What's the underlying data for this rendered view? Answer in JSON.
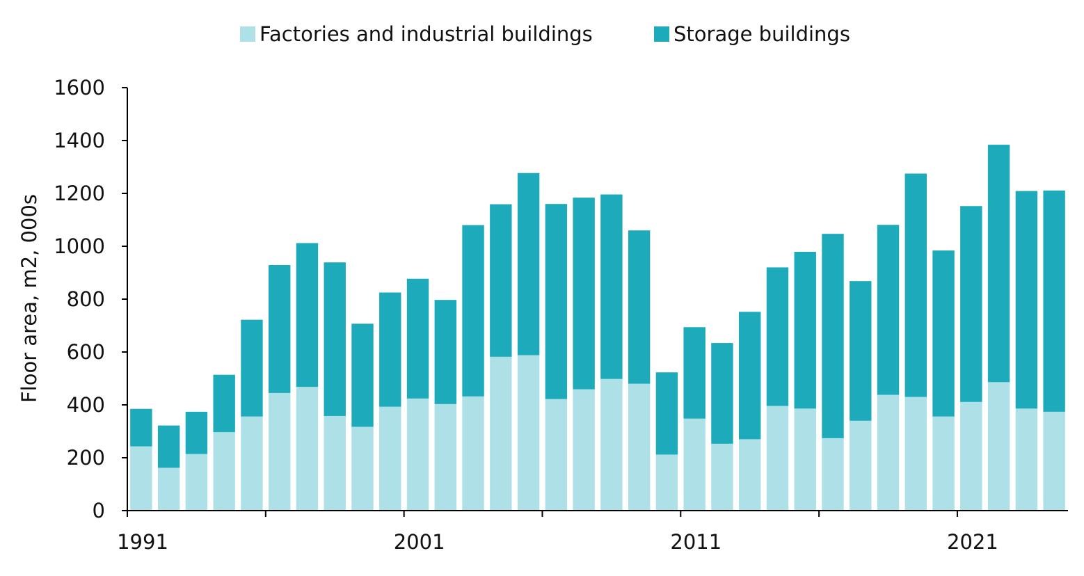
{
  "chart_data": {
    "type": "bar",
    "stacked": true,
    "title": "",
    "xlabel": "",
    "ylabel": "Floor area, m2, 000s",
    "ylim": [
      0,
      1600
    ],
    "yticks": [
      0,
      200,
      400,
      600,
      800,
      1000,
      1200,
      1400,
      1600
    ],
    "ytick_labels": [
      "0",
      "200",
      "400",
      "600",
      "800",
      "1000",
      "1200",
      "1400",
      "1600"
    ],
    "xtick_labels": [
      "1991",
      "2001",
      "2011",
      "2021"
    ],
    "grid": false,
    "legend_position": "top-center",
    "categories": [
      1991,
      1992,
      1993,
      1994,
      1995,
      1996,
      1997,
      1998,
      1999,
      2000,
      2001,
      2002,
      2003,
      2004,
      2005,
      2006,
      2007,
      2008,
      2009,
      2010,
      2011,
      2012,
      2013,
      2014,
      2015,
      2016,
      2017,
      2018,
      2019,
      2020,
      2021,
      2022,
      2023,
      2024
    ],
    "series": [
      {
        "name": "Factories and industrial buildings",
        "color": "#aee0e8",
        "values": [
          243,
          162,
          214,
          297,
          356,
          445,
          468,
          358,
          317,
          393,
          424,
          403,
          432,
          582,
          588,
          422,
          459,
          498,
          480,
          212,
          348,
          253,
          270,
          396,
          386,
          274,
          340,
          438,
          430,
          356,
          411,
          486,
          386,
          374
        ]
      },
      {
        "name": "Storage buildings",
        "color": "#1dabbb",
        "values": [
          142,
          160,
          160,
          217,
          366,
          484,
          544,
          581,
          390,
          432,
          453,
          394,
          648,
          577,
          689,
          738,
          725,
          698,
          580,
          311,
          346,
          381,
          482,
          524,
          593,
          773,
          528,
          643,
          845,
          628,
          741,
          898,
          823,
          837
        ]
      }
    ]
  }
}
